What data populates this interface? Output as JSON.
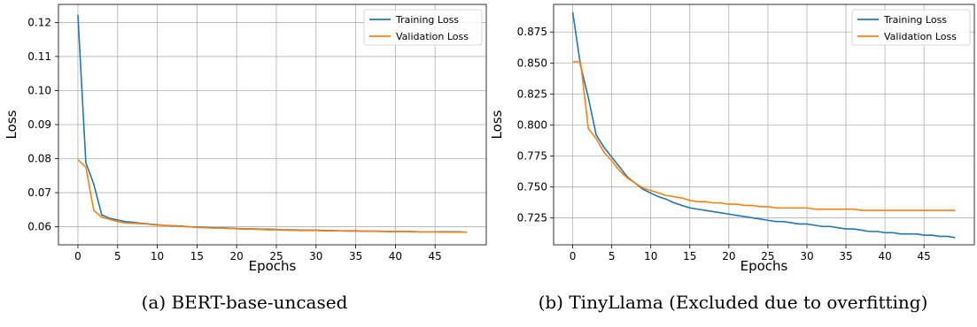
{
  "colors": {
    "training": "#1f77b4",
    "validation": "#ff7f0e",
    "grid": "#b0b0b0"
  },
  "chart_data": [
    {
      "type": "line",
      "caption": "(a) BERT-base-uncased",
      "xlabel": "Epochs",
      "ylabel": "Loss",
      "xlim": [
        -2.45,
        51.45
      ],
      "ylim": [
        0.0547,
        0.1253
      ],
      "xticks": [
        0,
        5,
        10,
        15,
        20,
        25,
        30,
        35,
        40,
        45
      ],
      "yticks": [
        0.06,
        0.07,
        0.08,
        0.09,
        0.1,
        0.11,
        0.12
      ],
      "ytick_labels": [
        "0.06",
        "0.07",
        "0.08",
        "0.09",
        "0.10",
        "0.11",
        "0.12"
      ],
      "grid": true,
      "legend": "top-right",
      "x": [
        0,
        1,
        2,
        3,
        4,
        5,
        6,
        7,
        8,
        9,
        10,
        11,
        12,
        13,
        14,
        15,
        16,
        17,
        18,
        19,
        20,
        21,
        22,
        23,
        24,
        25,
        26,
        27,
        28,
        29,
        30,
        31,
        32,
        33,
        34,
        35,
        36,
        37,
        38,
        39,
        40,
        41,
        42,
        43,
        44,
        45,
        46,
        47,
        48,
        49
      ],
      "series": [
        {
          "name": "Training Loss",
          "values": [
            0.1222,
            0.0788,
            0.0725,
            0.0635,
            0.0625,
            0.062,
            0.0615,
            0.0613,
            0.061,
            0.0608,
            0.0606,
            0.0604,
            0.0603,
            0.0602,
            0.06,
            0.0599,
            0.0598,
            0.0597,
            0.0597,
            0.0596,
            0.0595,
            0.0594,
            0.0594,
            0.0593,
            0.0593,
            0.0592,
            0.0591,
            0.0591,
            0.059,
            0.059,
            0.059,
            0.0589,
            0.0589,
            0.0588,
            0.0588,
            0.0588,
            0.0587,
            0.0587,
            0.0587,
            0.0586,
            0.0586,
            0.0586,
            0.0586,
            0.0585,
            0.0585,
            0.0585,
            0.0585,
            0.0585,
            0.0585,
            0.0584
          ]
        },
        {
          "name": "Validation Loss",
          "values": [
            0.0797,
            0.0775,
            0.0648,
            0.0628,
            0.0622,
            0.0615,
            0.0611,
            0.061,
            0.0609,
            0.0607,
            0.0605,
            0.0604,
            0.0602,
            0.0601,
            0.06,
            0.0598,
            0.0597,
            0.0596,
            0.0596,
            0.0595,
            0.0594,
            0.0593,
            0.0593,
            0.0592,
            0.0591,
            0.0591,
            0.059,
            0.059,
            0.0589,
            0.0589,
            0.0589,
            0.0588,
            0.0588,
            0.0588,
            0.0587,
            0.0587,
            0.0587,
            0.0587,
            0.0586,
            0.0586,
            0.0586,
            0.0586,
            0.0585,
            0.0585,
            0.0585,
            0.0585,
            0.0584,
            0.0584,
            0.0584,
            0.0584
          ]
        }
      ]
    },
    {
      "type": "line",
      "caption": "(b) TinyLlama (Excluded due to overfitting)",
      "xlabel": "Epochs",
      "ylabel": "Loss",
      "xlim": [
        -2.45,
        51.45
      ],
      "ylim": [
        0.7032,
        0.8973
      ],
      "xticks": [
        0,
        5,
        10,
        15,
        20,
        25,
        30,
        35,
        40,
        45
      ],
      "yticks": [
        0.725,
        0.75,
        0.775,
        0.8,
        0.825,
        0.85,
        0.875
      ],
      "ytick_labels": [
        "0.725",
        "0.750",
        "0.775",
        "0.800",
        "0.825",
        "0.850",
        "0.875"
      ],
      "grid": true,
      "legend": "top-right",
      "x": [
        0,
        1,
        2,
        3,
        4,
        5,
        6,
        7,
        8,
        9,
        10,
        11,
        12,
        13,
        14,
        15,
        16,
        17,
        18,
        19,
        20,
        21,
        22,
        23,
        24,
        25,
        26,
        27,
        28,
        29,
        30,
        31,
        32,
        33,
        34,
        35,
        36,
        37,
        38,
        39,
        40,
        41,
        42,
        43,
        44,
        45,
        46,
        47,
        48,
        49
      ],
      "series": [
        {
          "name": "Training Loss",
          "values": [
            0.891,
            0.848,
            0.822,
            0.792,
            0.782,
            0.774,
            0.766,
            0.758,
            0.753,
            0.748,
            0.745,
            0.742,
            0.74,
            0.737,
            0.735,
            0.733,
            0.732,
            0.731,
            0.73,
            0.729,
            0.728,
            0.727,
            0.726,
            0.725,
            0.724,
            0.723,
            0.722,
            0.722,
            0.721,
            0.72,
            0.72,
            0.719,
            0.718,
            0.718,
            0.717,
            0.716,
            0.716,
            0.715,
            0.714,
            0.714,
            0.713,
            0.713,
            0.712,
            0.712,
            0.712,
            0.711,
            0.711,
            0.71,
            0.71,
            0.709
          ]
        },
        {
          "name": "Validation Loss",
          "values": [
            0.851,
            0.851,
            0.797,
            0.789,
            0.778,
            0.771,
            0.763,
            0.757,
            0.753,
            0.749,
            0.747,
            0.745,
            0.743,
            0.742,
            0.741,
            0.739,
            0.738,
            0.738,
            0.737,
            0.737,
            0.736,
            0.736,
            0.735,
            0.735,
            0.734,
            0.734,
            0.733,
            0.733,
            0.733,
            0.733,
            0.733,
            0.732,
            0.732,
            0.732,
            0.732,
            0.732,
            0.732,
            0.731,
            0.731,
            0.731,
            0.731,
            0.731,
            0.731,
            0.731,
            0.731,
            0.731,
            0.731,
            0.731,
            0.731,
            0.731
          ]
        }
      ]
    }
  ]
}
